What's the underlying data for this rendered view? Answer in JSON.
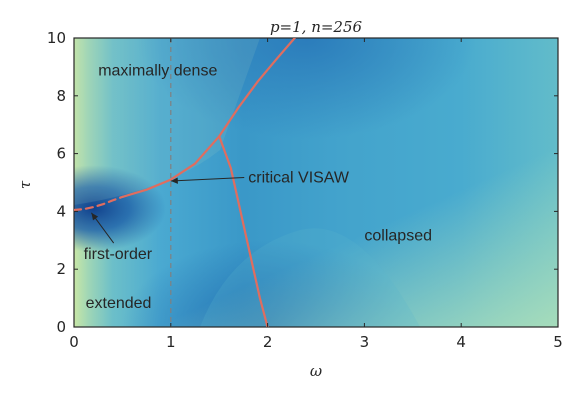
{
  "chart_data": {
    "type": "heatmap",
    "title": "p=1, n=256",
    "xlabel": "ω",
    "ylabel": "τ",
    "xlim": [
      0,
      5
    ],
    "ylim": [
      0,
      10
    ],
    "x_ticks": [
      "0",
      "1",
      "2",
      "3",
      "4",
      "5"
    ],
    "y_ticks": [
      "0",
      "2",
      "4",
      "6",
      "8",
      "10"
    ],
    "grid": false,
    "colors": {
      "boundary_line": "#e06d5f",
      "dashed_reference": "#808080",
      "heat_low": "#c8e6a0",
      "heat_mid": "#3fa3cf",
      "heat_high": "#1e64ad"
    },
    "vertical_reference_line": {
      "x": 1,
      "style": "dashed"
    },
    "phase_boundaries": [
      {
        "id": "dense-extended-first-order",
        "style": "dashed",
        "points": [
          [
            0,
            4.05
          ],
          [
            0.1,
            4.08
          ],
          [
            0.2,
            4.15
          ],
          [
            0.3,
            4.25
          ],
          [
            0.4,
            4.38
          ],
          [
            0.5,
            4.5
          ]
        ]
      },
      {
        "id": "dense-extended-second-order",
        "style": "solid",
        "points": [
          [
            0.5,
            4.5
          ],
          [
            0.75,
            4.75
          ],
          [
            1.0,
            5.1
          ],
          [
            1.25,
            5.65
          ],
          [
            1.5,
            6.6
          ],
          [
            1.7,
            7.6
          ],
          [
            1.9,
            8.5
          ],
          [
            2.1,
            9.3
          ],
          [
            2.28,
            10.0
          ]
        ]
      },
      {
        "id": "dense-collapsed",
        "style": "solid",
        "points": [
          [
            1.5,
            6.6
          ],
          [
            1.62,
            5.5
          ],
          [
            1.72,
            4.0
          ],
          [
            1.82,
            2.5
          ],
          [
            1.92,
            1.0
          ],
          [
            2.0,
            0
          ]
        ]
      }
    ],
    "critical_point": {
      "x": 1.5,
      "y": 6.6
    },
    "annotations": [
      {
        "id": "maximally-dense",
        "text": "maximally dense",
        "x": 0.25,
        "y": 8.7
      },
      {
        "id": "extended",
        "text": "extended",
        "x": 0.12,
        "y": 0.65
      },
      {
        "id": "collapsed",
        "text": "collapsed",
        "x": 3.0,
        "y": 3.0
      },
      {
        "id": "critical-visaw",
        "text": "critical VISAW",
        "x": 1.8,
        "y": 5.0,
        "arrow_to": [
          1.0,
          5.05
        ]
      },
      {
        "id": "first-order",
        "text": "first-order",
        "x": 0.1,
        "y": 2.35,
        "arrow_to": [
          0.18,
          3.95
        ]
      }
    ]
  }
}
